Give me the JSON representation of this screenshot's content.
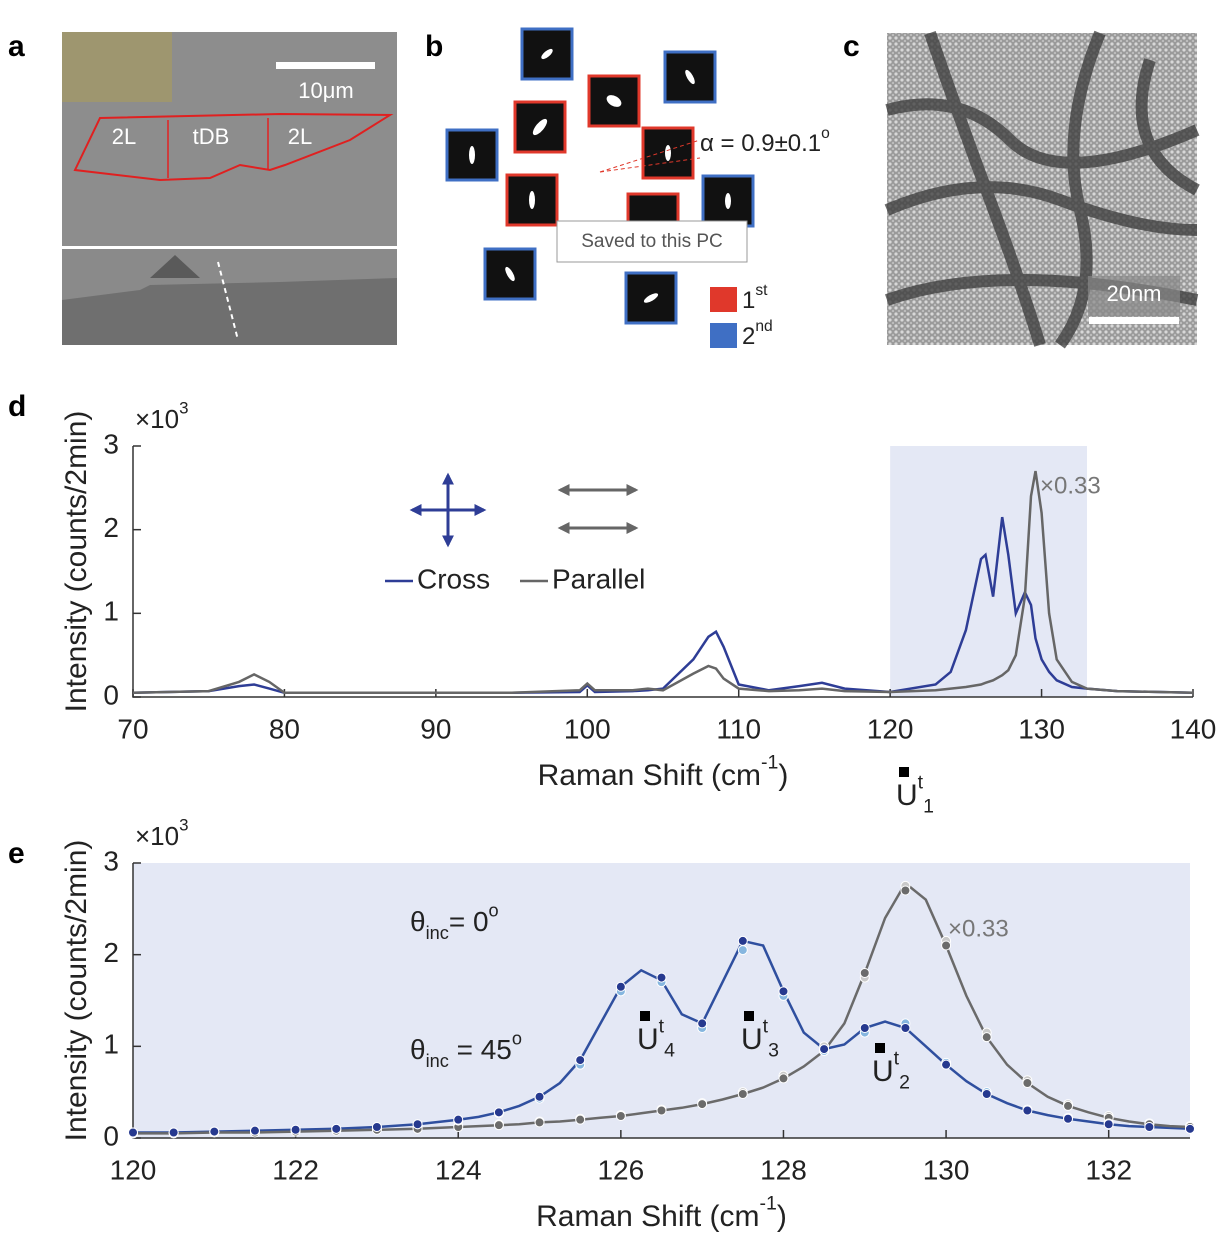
{
  "panel_labels": [
    "a",
    "b",
    "c",
    "d",
    "e"
  ],
  "panel_a": {
    "labels": [
      "2L",
      "tDB",
      "2L"
    ],
    "scale_bar": "10μm"
  },
  "panel_b": {
    "annotation": [
      {
        "t": "α = 0.9±0.1"
      },
      {
        "t": "o",
        "sup": true
      }
    ],
    "legend": [
      {
        "parts": [
          {
            "t": "1"
          },
          {
            "t": "st",
            "sup": true
          }
        ],
        "color": "#e0382b"
      },
      {
        "parts": [
          {
            "t": "2"
          },
          {
            "t": "nd",
            "sup": true
          }
        ],
        "color": "#3f6fc4"
      }
    ]
  },
  "tooltip": "Saved to this PC",
  "panel_c": {
    "scale_bar": "20nm"
  },
  "chart_data": [
    {
      "type": "line",
      "xlim": [
        70,
        140
      ],
      "xticks": [
        70,
        80,
        90,
        100,
        110,
        120,
        130,
        140
      ],
      "ylim": [
        0,
        3
      ],
      "yticks": [
        0,
        1,
        2,
        3
      ],
      "multiplier": [
        {
          "t": "×10"
        },
        {
          "t": "3",
          "sup": true
        }
      ],
      "ylabel": [
        {
          "t": "Intensity (counts/2min)"
        }
      ],
      "xlabel": [
        {
          "t": "Raman Shift (cm"
        },
        {
          "t": "-1",
          "sup": true
        },
        {
          "t": ")"
        }
      ],
      "annotation": "×0.33",
      "highlight": [
        120,
        133
      ],
      "highlight_color": "#e4e8f5",
      "x": [
        70,
        75,
        77,
        78,
        79,
        80,
        85,
        90,
        95,
        99.5,
        100,
        100.5,
        103,
        104,
        105,
        107,
        108,
        108.5,
        109,
        110,
        112,
        114,
        115.5,
        117,
        120,
        123,
        124,
        125,
        126,
        126.3,
        126.8,
        127.4,
        127.8,
        128.3,
        128.9,
        129.3,
        129.6,
        130,
        130.5,
        131,
        132,
        133,
        135,
        140
      ],
      "series": [
        {
          "name": "Cross",
          "color": "#2e3d96",
          "values": [
            0.05,
            0.07,
            0.13,
            0.15,
            0.1,
            0.05,
            0.05,
            0.05,
            0.05,
            0.06,
            0.14,
            0.06,
            0.07,
            0.08,
            0.1,
            0.45,
            0.72,
            0.78,
            0.6,
            0.15,
            0.08,
            0.13,
            0.17,
            0.1,
            0.06,
            0.15,
            0.3,
            0.8,
            1.65,
            1.7,
            1.2,
            2.15,
            1.7,
            1.0,
            1.25,
            1.1,
            0.7,
            0.45,
            0.3,
            0.2,
            0.12,
            0.1,
            0.07,
            0.05
          ]
        },
        {
          "name": "Parallel",
          "color": "#666666",
          "values": [
            0.05,
            0.07,
            0.18,
            0.27,
            0.18,
            0.05,
            0.05,
            0.05,
            0.05,
            0.08,
            0.16,
            0.08,
            0.08,
            0.1,
            0.08,
            0.28,
            0.37,
            0.34,
            0.22,
            0.1,
            0.07,
            0.08,
            0.1,
            0.07,
            0.06,
            0.08,
            0.1,
            0.12,
            0.15,
            0.17,
            0.2,
            0.26,
            0.32,
            0.5,
            1.2,
            2.4,
            2.7,
            2.2,
            1.0,
            0.45,
            0.18,
            0.1,
            0.07,
            0.05
          ]
        }
      ]
    },
    {
      "type": "line",
      "xlim": [
        120,
        133
      ],
      "xticks": [
        120,
        122,
        124,
        126,
        128,
        130,
        132
      ],
      "ylim": [
        0,
        3
      ],
      "yticks": [
        0,
        1,
        2,
        3
      ],
      "multiplier": [
        {
          "t": "×10"
        },
        {
          "t": "3",
          "sup": true
        }
      ],
      "ylabel": [
        {
          "t": "Intensity (counts/2min)"
        }
      ],
      "xlabel": [
        {
          "t": "Raman Shift (cm"
        },
        {
          "t": "-1",
          "sup": true
        },
        {
          "t": ")"
        }
      ],
      "annotation": "×0.33",
      "background": "#e4e8f5",
      "legend_texts": [
        [
          {
            "t": "θ"
          },
          {
            "t": "inc",
            "sub": true
          },
          {
            "t": "= 0"
          },
          {
            "t": "o",
            "sup": true
          }
        ],
        [
          {
            "t": "θ"
          },
          {
            "t": "inc",
            "sub": true
          },
          {
            "t": " = 45"
          },
          {
            "t": "o",
            "sup": true
          }
        ]
      ],
      "modes": [
        [
          {
            "t": "U"
          },
          {
            "t": "t",
            "sup": true
          },
          {
            "t": "1",
            "sub": true
          }
        ],
        [
          {
            "t": "U"
          },
          {
            "t": "t",
            "sup": true
          },
          {
            "t": "2",
            "sub": true
          }
        ],
        [
          {
            "t": "U"
          },
          {
            "t": "t",
            "sup": true
          },
          {
            "t": "3",
            "sub": true
          }
        ],
        [
          {
            "t": "U"
          },
          {
            "t": "t",
            "sup": true
          },
          {
            "t": "4",
            "sub": true
          }
        ]
      ],
      "x": [
        120,
        120.5,
        121,
        121.5,
        122,
        122.5,
        123,
        123.5,
        124,
        124.25,
        124.5,
        124.75,
        125,
        125.25,
        125.5,
        125.75,
        126,
        126.25,
        126.5,
        126.75,
        127,
        127.25,
        127.5,
        127.75,
        128,
        128.25,
        128.5,
        128.75,
        129,
        129.25,
        129.5,
        129.75,
        130,
        130.25,
        130.5,
        130.75,
        131,
        131.25,
        131.5,
        131.75,
        132,
        132.25,
        132.5,
        132.75,
        133
      ],
      "series": [
        {
          "mode": "line",
          "color": "#2f4f9f",
          "values": [
            0.06,
            0.06,
            0.07,
            0.08,
            0.09,
            0.1,
            0.12,
            0.15,
            0.2,
            0.23,
            0.28,
            0.35,
            0.45,
            0.6,
            0.85,
            1.25,
            1.65,
            1.83,
            1.72,
            1.35,
            1.25,
            1.7,
            2.15,
            2.1,
            1.6,
            1.15,
            0.97,
            1.02,
            1.2,
            1.27,
            1.2,
            1.0,
            0.8,
            0.62,
            0.48,
            0.38,
            0.3,
            0.25,
            0.21,
            0.18,
            0.15,
            0.13,
            0.12,
            0.11,
            0.1
          ]
        },
        {
          "mode": "line",
          "color": "#6a6a6a",
          "values": [
            0.05,
            0.05,
            0.06,
            0.06,
            0.07,
            0.08,
            0.09,
            0.1,
            0.12,
            0.13,
            0.14,
            0.15,
            0.17,
            0.18,
            0.2,
            0.22,
            0.24,
            0.27,
            0.3,
            0.33,
            0.37,
            0.42,
            0.48,
            0.55,
            0.65,
            0.78,
            0.95,
            1.25,
            1.8,
            2.4,
            2.78,
            2.6,
            2.1,
            1.55,
            1.1,
            0.8,
            0.6,
            0.45,
            0.35,
            0.28,
            0.22,
            0.18,
            0.15,
            0.13,
            0.12
          ]
        },
        {
          "mode": "scatter",
          "color": "#c9c9c9",
          "x": [
            120,
            120.5,
            121,
            121.5,
            122,
            122.5,
            123,
            123.5,
            124,
            124.5,
            125,
            125.5,
            126,
            126.5,
            127,
            127.5,
            128,
            128.5,
            129,
            129.5,
            130,
            130.5,
            131,
            131.5,
            132,
            132.5,
            133
          ],
          "values": [
            0.06,
            0.06,
            0.07,
            0.07,
            0.08,
            0.09,
            0.1,
            0.11,
            0.13,
            0.15,
            0.18,
            0.21,
            0.25,
            0.31,
            0.38,
            0.5,
            0.68,
            1.0,
            1.75,
            2.75,
            2.15,
            1.15,
            0.63,
            0.37,
            0.24,
            0.16,
            0.13
          ]
        },
        {
          "mode": "scatter",
          "color": "#6b6b6b",
          "x": [
            120,
            120.5,
            121,
            121.5,
            122,
            122.5,
            123,
            123.5,
            124,
            124.5,
            125,
            125.5,
            126,
            126.5,
            127,
            127.5,
            128,
            128.5,
            129,
            129.5,
            130,
            130.5,
            131,
            131.5,
            132,
            132.5,
            133
          ],
          "values": [
            0.05,
            0.05,
            0.06,
            0.06,
            0.07,
            0.08,
            0.09,
            0.1,
            0.12,
            0.14,
            0.17,
            0.2,
            0.24,
            0.3,
            0.37,
            0.48,
            0.65,
            0.95,
            1.8,
            2.7,
            2.1,
            1.1,
            0.6,
            0.35,
            0.22,
            0.15,
            0.12
          ]
        },
        {
          "mode": "scatter",
          "color": "#86b6df",
          "x": [
            120,
            120.5,
            121,
            121.5,
            122,
            122.5,
            123,
            123.5,
            124,
            124.5,
            125,
            125.5,
            126,
            126.5,
            127,
            127.5,
            128,
            128.5,
            129,
            129.5,
            130,
            130.5,
            131,
            131.5,
            132,
            132.5,
            133
          ],
          "values": [
            0.05,
            0.06,
            0.07,
            0.08,
            0.09,
            0.1,
            0.12,
            0.15,
            0.19,
            0.27,
            0.43,
            0.8,
            1.6,
            1.7,
            1.2,
            2.05,
            1.55,
            0.95,
            1.15,
            1.25,
            0.82,
            0.5,
            0.31,
            0.22,
            0.16,
            0.12,
            0.1
          ]
        },
        {
          "mode": "scatter",
          "color": "#26398f",
          "x": [
            120,
            120.5,
            121,
            121.5,
            122,
            122.5,
            123,
            123.5,
            124,
            124.5,
            125,
            125.5,
            126,
            126.5,
            127,
            127.5,
            128,
            128.5,
            129,
            129.5,
            130,
            130.5,
            131,
            131.5,
            132,
            132.5,
            133
          ],
          "values": [
            0.06,
            0.06,
            0.07,
            0.08,
            0.09,
            0.1,
            0.12,
            0.15,
            0.2,
            0.28,
            0.45,
            0.85,
            1.65,
            1.75,
            1.25,
            2.15,
            1.6,
            0.97,
            1.2,
            1.2,
            0.8,
            0.48,
            0.3,
            0.21,
            0.15,
            0.12,
            0.1
          ]
        }
      ]
    }
  ]
}
